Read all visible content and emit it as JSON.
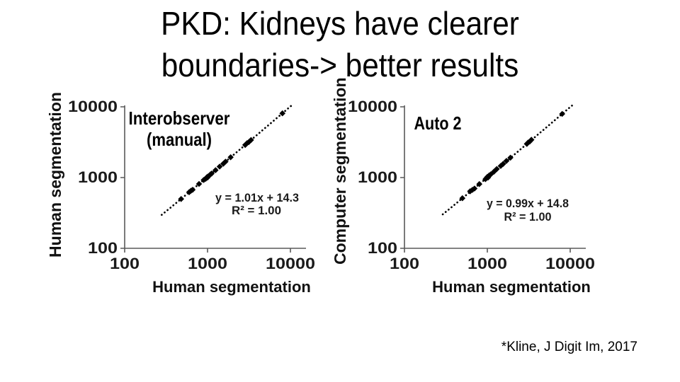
{
  "slide": {
    "title_lines": [
      "PKD: Kidneys have clearer",
      "boundaries-> better results"
    ],
    "citation": "*Kline, J Digit Im, 2017",
    "background": "#ffffff"
  },
  "colors": {
    "text": "#000000",
    "axis": "#595959",
    "marker": "#000000"
  },
  "chart_data": [
    {
      "type": "scatter",
      "title": "Interobserver (manual)",
      "title_lines": [
        "Interobserver",
        "(manual)"
      ],
      "xlabel": "Human segmentation",
      "ylabel": "Human segmentation",
      "x_scale": "log",
      "y_scale": "log",
      "xlim": [
        100,
        10000
      ],
      "ylim": [
        100,
        10000
      ],
      "x_ticks": [
        "100",
        "1000",
        "10000"
      ],
      "y_ticks": [
        "100",
        "1000",
        "10000"
      ],
      "grid": false,
      "legend": "none",
      "equation": "y = 1.01x + 14.3",
      "r2": "R² = 1.00",
      "trendline": {
        "slope": 1.01,
        "intercept": 14.3,
        "style": "dotted",
        "x_range": [
          280,
          10500
        ]
      },
      "points": [
        [
          480,
          498
        ],
        [
          600,
          621
        ],
        [
          630,
          650
        ],
        [
          660,
          672
        ],
        [
          790,
          812
        ],
        [
          900,
          925
        ],
        [
          950,
          962
        ],
        [
          980,
          1010
        ],
        [
          1000,
          1000
        ],
        [
          1010,
          1035
        ],
        [
          1040,
          1060
        ],
        [
          1080,
          1105
        ],
        [
          1120,
          1140
        ],
        [
          1250,
          1270
        ],
        [
          1400,
          1430
        ],
        [
          1550,
          1570
        ],
        [
          1650,
          1680
        ],
        [
          1900,
          1935
        ],
        [
          2850,
          2890
        ],
        [
          3000,
          3060
        ],
        [
          3150,
          3180
        ],
        [
          3350,
          3400
        ],
        [
          8000,
          8100
        ]
      ]
    },
    {
      "type": "scatter",
      "title": "Auto 2",
      "title_lines": [
        "Auto 2"
      ],
      "xlabel": "Human segmentation",
      "ylabel": "Computer segmentation",
      "x_scale": "log",
      "y_scale": "log",
      "xlim": [
        100,
        10000
      ],
      "ylim": [
        100,
        10000
      ],
      "x_ticks": [
        "100",
        "1000",
        "10000"
      ],
      "y_ticks": [
        "100",
        "1000",
        "10000"
      ],
      "grid": false,
      "legend": "none",
      "equation": "y = 0.99x + 14.8",
      "r2": "R² = 1.00",
      "trendline": {
        "slope": 0.99,
        "intercept": 14.8,
        "style": "dotted",
        "x_range": [
          290,
          10500
        ]
      },
      "points": [
        [
          500,
          510
        ],
        [
          620,
          640
        ],
        [
          660,
          670
        ],
        [
          700,
          700
        ],
        [
          800,
          810
        ],
        [
          950,
          950
        ],
        [
          980,
          990
        ],
        [
          1000,
          1020
        ],
        [
          1020,
          1000
        ],
        [
          1050,
          1070
        ],
        [
          1100,
          1110
        ],
        [
          1200,
          1210
        ],
        [
          1300,
          1320
        ],
        [
          1450,
          1460
        ],
        [
          1550,
          1560
        ],
        [
          1700,
          1720
        ],
        [
          1900,
          1910
        ],
        [
          3000,
          2990
        ],
        [
          3100,
          3120
        ],
        [
          3250,
          3230
        ],
        [
          3400,
          3420
        ],
        [
          8000,
          7950
        ]
      ]
    }
  ]
}
